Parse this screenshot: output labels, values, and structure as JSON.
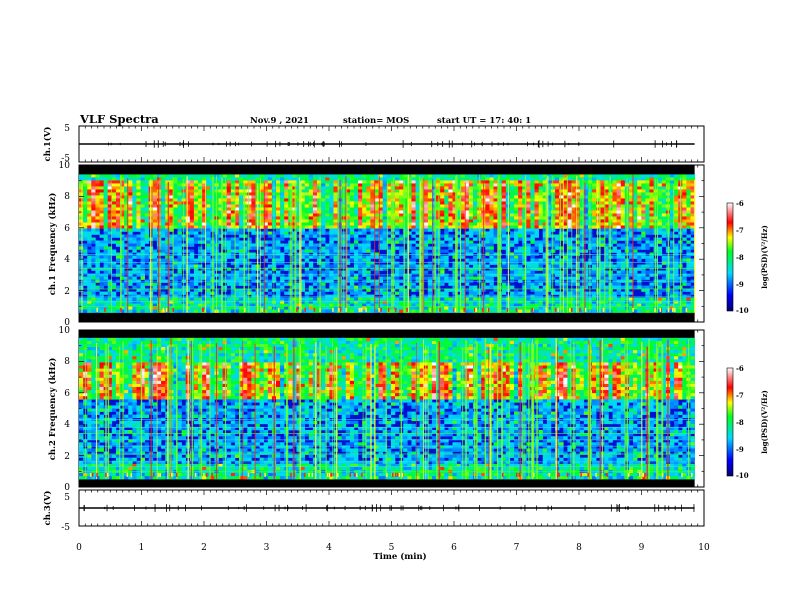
{
  "header": {
    "title": "VLF Spectra",
    "date": "Nov.9 , 2021",
    "station": "station= MOS",
    "start": "start UT = 17: 40: 1"
  },
  "chart_data": [
    {
      "id": "ch1_waveform",
      "type": "line",
      "ylabel": "ch.1(V)",
      "yticks": [
        "5",
        "-5"
      ],
      "ylim": [
        -5,
        5
      ],
      "xlim": [
        0,
        10
      ],
      "baseline": 0,
      "color": "#000000"
    },
    {
      "id": "ch1_spectrogram",
      "type": "heatmap",
      "ylabel": "ch.1 Frequency (kHz)",
      "yticks": [
        "0",
        "2",
        "4",
        "6",
        "8",
        "10"
      ],
      "ylim": [
        0,
        10
      ],
      "xlim": [
        0,
        9.85
      ],
      "colorbar": {
        "label": "log(PSD)(V²/Hz)",
        "ticks": [
          "-6",
          "-7",
          "-8",
          "-9",
          "-10"
        ],
        "range": [
          -10,
          -6
        ],
        "colors": [
          "#000080",
          "#0000ff",
          "#00ffff",
          "#00ff00",
          "#ffff00",
          "#ff0000",
          "#ffffff"
        ]
      },
      "background_band_khz": [
        0.6,
        9.4
      ],
      "intense_band_khz": [
        6,
        9
      ]
    },
    {
      "id": "ch2_spectrogram",
      "type": "heatmap",
      "ylabel": "ch.2 Frequency (kHz)",
      "yticks": [
        "0",
        "2",
        "4",
        "6",
        "8",
        "10"
      ],
      "ylim": [
        0,
        10
      ],
      "xlim": [
        0,
        9.85
      ],
      "colorbar": {
        "label": "log(PSD)(V²/Hz)",
        "ticks": [
          "-6",
          "-7",
          "-8",
          "-9",
          "-10"
        ],
        "range": [
          -10,
          -6
        ],
        "colors": [
          "#000080",
          "#0000ff",
          "#00ffff",
          "#00ff00",
          "#ffff00",
          "#ff0000",
          "#ffffff"
        ]
      },
      "background_band_khz": [
        0.5,
        9.5
      ],
      "intense_band_khz": [
        5.5,
        8
      ]
    },
    {
      "id": "ch3_waveform",
      "type": "line",
      "ylabel": "ch.3(V)",
      "yticks": [
        "5",
        "-5"
      ],
      "ylim": [
        -5,
        5
      ],
      "xlim": [
        0,
        10
      ],
      "baseline": 0,
      "color": "#000000"
    }
  ],
  "xaxis": {
    "label": "Time (min)",
    "ticks": [
      "0",
      "1",
      "2",
      "3",
      "4",
      "5",
      "6",
      "7",
      "8",
      "9",
      "10"
    ],
    "range": [
      0,
      10
    ]
  }
}
